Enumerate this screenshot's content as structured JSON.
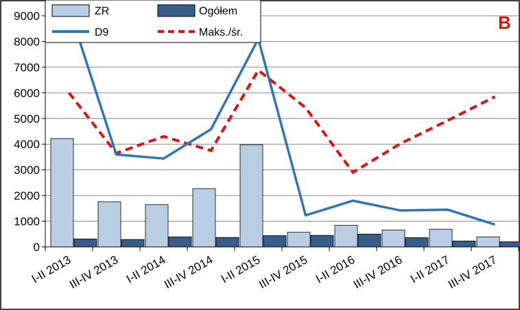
{
  "panel_label": "B",
  "colors": {
    "zr": "#b9cde5",
    "ogolem": "#385d8a",
    "d9": "#2e75b6",
    "maks": "#e01010",
    "bar_stroke": "#000000",
    "grid": "#868686",
    "panel": "#e01010"
  },
  "chart_data": {
    "type": "bar",
    "categories": [
      "I-II 2013",
      "III-IV 2013",
      "I-II 2014",
      "III-IV 2014",
      "I-II 2015",
      "III-IV 2015",
      "I-II 2016",
      "III-IV 2016",
      "I-II 2017",
      "III-IV 2017"
    ],
    "ylim": [
      0,
      9000
    ],
    "yticks": [
      0,
      1000,
      2000,
      3000,
      4000,
      5000,
      6000,
      7000,
      8000,
      9000
    ],
    "grid": true,
    "legend_position": "top-left",
    "series": [
      {
        "name": "ZR",
        "kind": "bar",
        "values": [
          4220,
          1760,
          1650,
          2270,
          3980,
          570,
          840,
          660,
          690,
          390
        ]
      },
      {
        "name": "Ogółem",
        "kind": "bar",
        "values": [
          310,
          290,
          390,
          370,
          440,
          450,
          500,
          360,
          230,
          200
        ]
      },
      {
        "name": "D9",
        "kind": "line",
        "values": [
          9300,
          3600,
          3440,
          4580,
          8100,
          1230,
          1800,
          1420,
          1450,
          870
        ]
      },
      {
        "name": "Maks./śr.",
        "kind": "dashed-line",
        "values": [
          6000,
          3650,
          4300,
          3750,
          6880,
          5420,
          2900,
          4020,
          4920,
          5850
        ]
      }
    ]
  }
}
